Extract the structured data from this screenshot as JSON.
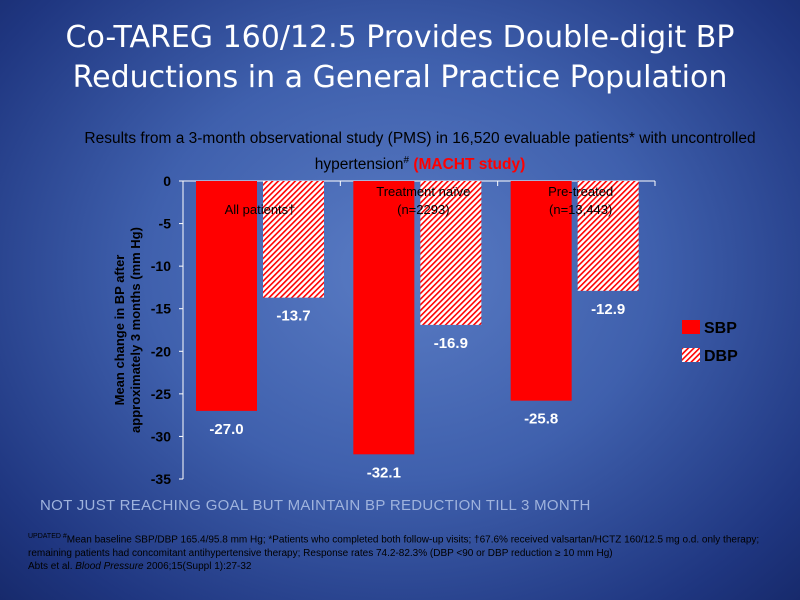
{
  "title_line1": "Co-TAREG 160/12.5 Provides Double-digit BP",
  "title_line2": "Reductions in a General Practice Population",
  "subtitle_main": "Results from a 3-month observational study (PMS) in 16,520 evaluable patients* with uncontrolled hypertension",
  "subtitle_sup": "#",
  "subtitle_study": "(MACHT study)",
  "banner": "NOT JUST REACHING GOAL BUT MAINTAIN BP REDUCTION TILL 3 MONTH",
  "footnote": {
    "updated": "UPDATED #",
    "line1": "Mean baseline SBP/DBP 165.4/95.8 mm Hg; *Patients who completed both follow-up visits; †67.6% received valsartan/HCTZ 160/12.5  mg o.d. only therapy; remaining patients had concomitant antihypertensive therapy; Response rates 74.2-82.3% (DBP <90 or DBP reduction ≥ 10 mm Hg)",
    "ref_pre": "Abts et al. ",
    "ref_journal": "Blood Pressure",
    "ref_post": " 2006;15(Suppl 1):27-32"
  },
  "chart_data": {
    "type": "bar",
    "categories": [
      "All patients†",
      "Treatment naïve (n=2293)",
      "Pre-treated (n=13,443)"
    ],
    "category_lines": [
      [
        "All patients†"
      ],
      [
        "Treatment naïve",
        "(n=2293)"
      ],
      [
        "Pre-treated",
        "(n=13,443)"
      ]
    ],
    "series": [
      {
        "name": "SBP",
        "values": [
          -27.0,
          -32.1,
          -25.8
        ],
        "color": "#ff0000",
        "pattern": "solid"
      },
      {
        "name": "DBP",
        "values": [
          -13.7,
          -16.9,
          -12.9
        ],
        "color": "#ff0000",
        "pattern": "hatched"
      }
    ],
    "ylabel_lines": [
      "Mean change in BP after",
      "approximately 3 months (mm Hg)"
    ],
    "ylim": [
      -35,
      0
    ],
    "yticks": [
      0,
      -5,
      -10,
      -15,
      -20,
      -25,
      -30,
      -35
    ],
    "legend_position": "right",
    "grid": false
  }
}
